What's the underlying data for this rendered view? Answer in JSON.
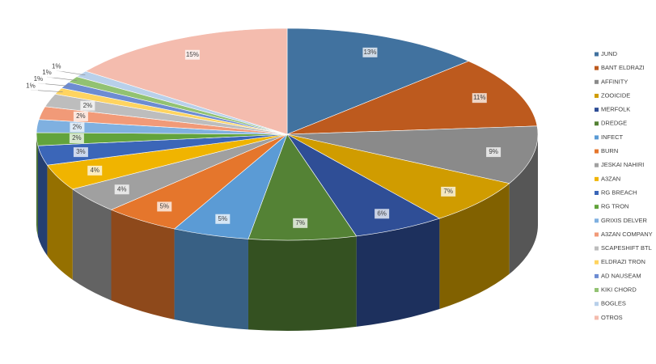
{
  "chart_data": {
    "type": "pie3d",
    "categories": [
      "JUND",
      "BANT ELDRAZI",
      "AFFINITY",
      "ZOOICIDE",
      "MERFOLK",
      "DREDGE",
      "INFECT",
      "BURN",
      "JESKAI NAHIRI",
      "A3ZAN",
      "RG BREACH",
      "RG TRON",
      "GRIXIS DELVER",
      "A3ZAN COMPANY",
      "SCAPESHIFT BTL",
      "ELDRAZI TRON",
      "AD NAUSEAM",
      "KIKI CHORD",
      "BOGLES",
      "OTROS"
    ],
    "values": [
      13,
      11,
      9,
      7,
      6,
      7,
      5,
      5,
      4,
      4,
      3,
      2,
      2,
      2,
      2,
      1,
      1,
      1,
      1,
      15
    ],
    "value_labels": [
      "13%",
      "11%",
      "9%",
      "7%",
      "6%",
      "7%",
      "5%",
      "5%",
      "4%",
      "4%",
      "3%",
      "2%",
      "2%",
      "2%",
      "2%",
      "1%",
      "1%",
      "1%",
      "1%",
      "15%"
    ],
    "colors": [
      "#41729f",
      "#bd5a1e",
      "#8a8a8a",
      "#d09c00",
      "#2f4e96",
      "#548235",
      "#5b9bd5",
      "#e5762c",
      "#a0a0a0",
      "#f0b400",
      "#3b66b8",
      "#62a33c",
      "#7fb0e0",
      "#f19a78",
      "#bdbdbd",
      "#ffd460",
      "#6d8cd2",
      "#92c272",
      "#b8d0ea",
      "#f4bcae"
    ],
    "legend": "right"
  }
}
